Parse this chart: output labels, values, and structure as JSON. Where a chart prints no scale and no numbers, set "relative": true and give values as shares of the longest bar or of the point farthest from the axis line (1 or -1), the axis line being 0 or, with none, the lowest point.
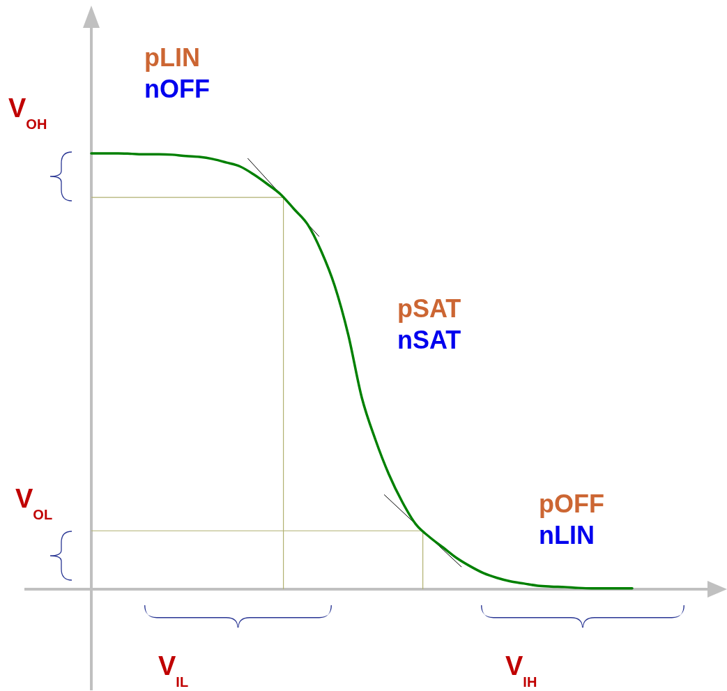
{
  "chart_data": {
    "type": "line",
    "relative": true,
    "color": "#008000",
    "categories": [
      null,
      null,
      null,
      null,
      null,
      null,
      null,
      null,
      null,
      null,
      null,
      null,
      null,
      null,
      null,
      null,
      null,
      null,
      null,
      null,
      null,
      null,
      null,
      null,
      null,
      null,
      null,
      null,
      null,
      null,
      null,
      null,
      null,
      null,
      null,
      null,
      null,
      null,
      null,
      null,
      null
    ],
    "values": [
      1.0,
      1.0,
      1.0,
      0.999,
      0.998,
      0.998,
      0.997,
      0.994,
      0.992,
      0.987,
      0.979,
      0.97,
      0.952,
      0.93,
      0.906,
      0.872,
      0.837,
      0.776,
      0.696,
      0.584,
      0.44,
      0.344,
      0.264,
      0.2,
      0.149,
      0.12,
      0.096,
      0.072,
      0.053,
      0.037,
      0.026,
      0.018,
      0.013,
      0.008,
      0.006,
      0.005,
      0.003,
      0.002,
      0.002,
      0.002,
      0.002
    ],
    "ref_lines": [
      {
        "axis": "y",
        "value": 0.899,
        "color": "#b0b070"
      },
      {
        "axis": "y",
        "value": 0.134,
        "color": "#b0b070"
      }
    ],
    "annotations": [
      "pLIN",
      "nOFF",
      "pSAT",
      "nSAT",
      "pOFF",
      "nLIN",
      "V$_{OH}$",
      "V$_{OL}$",
      "V$_{IL}$",
      "V$_{IH}$"
    ]
  }
}
